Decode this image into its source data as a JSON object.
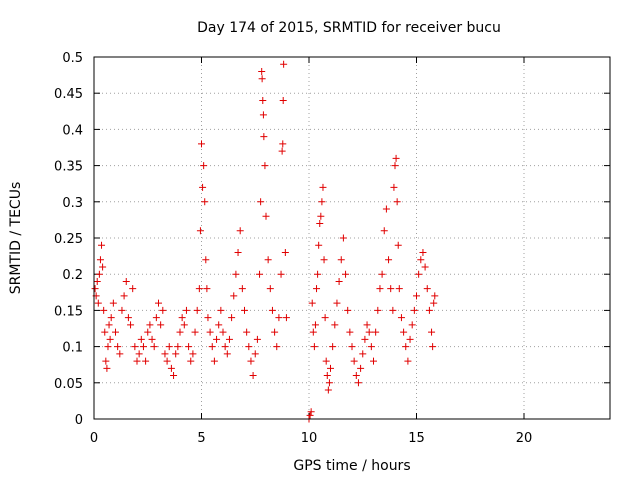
{
  "chart_data": {
    "type": "scatter",
    "title": "Day 174 of 2015, SRMTID for receiver bucu",
    "xlabel": "GPS time / hours",
    "ylabel": "SRMTID / TECUs",
    "xlim": [
      0,
      24
    ],
    "ylim": [
      0,
      0.5
    ],
    "x_ticks": [
      0,
      5,
      10,
      15,
      20
    ],
    "x_tick_labels": [
      "0",
      "5",
      "10",
      "15",
      "20"
    ],
    "y_ticks": [
      0,
      0.05,
      0.1,
      0.15,
      0.2,
      0.25,
      0.3,
      0.35,
      0.4,
      0.45,
      0.5
    ],
    "y_tick_labels": [
      "0",
      "0.05",
      "0.1",
      "0.15",
      "0.2",
      "0.25",
      "0.3",
      "0.35",
      "0.4",
      "0.45",
      "0.5"
    ],
    "grid": true,
    "marker": "+",
    "series": [
      {
        "name": "SRMTID",
        "color": "#e00000",
        "points": [
          [
            0.05,
            0.18
          ],
          [
            0.1,
            0.17
          ],
          [
            0.15,
            0.19
          ],
          [
            0.2,
            0.16
          ],
          [
            0.25,
            0.2
          ],
          [
            0.3,
            0.22
          ],
          [
            0.35,
            0.24
          ],
          [
            0.4,
            0.21
          ],
          [
            0.45,
            0.15
          ],
          [
            0.5,
            0.12
          ],
          [
            0.55,
            0.08
          ],
          [
            0.6,
            0.07
          ],
          [
            0.65,
            0.1
          ],
          [
            0.7,
            0.13
          ],
          [
            0.75,
            0.11
          ],
          [
            0.8,
            0.14
          ],
          [
            0.9,
            0.16
          ],
          [
            1.0,
            0.12
          ],
          [
            1.1,
            0.1
          ],
          [
            1.2,
            0.09
          ],
          [
            1.3,
            0.15
          ],
          [
            1.4,
            0.17
          ],
          [
            1.5,
            0.19
          ],
          [
            1.6,
            0.14
          ],
          [
            1.7,
            0.13
          ],
          [
            1.8,
            0.18
          ],
          [
            1.9,
            0.1
          ],
          [
            2.0,
            0.08
          ],
          [
            2.1,
            0.09
          ],
          [
            2.2,
            0.11
          ],
          [
            2.3,
            0.1
          ],
          [
            2.4,
            0.08
          ],
          [
            2.5,
            0.12
          ],
          [
            2.6,
            0.13
          ],
          [
            2.7,
            0.11
          ],
          [
            2.8,
            0.1
          ],
          [
            2.9,
            0.14
          ],
          [
            3.0,
            0.16
          ],
          [
            3.1,
            0.13
          ],
          [
            3.2,
            0.15
          ],
          [
            3.3,
            0.09
          ],
          [
            3.4,
            0.08
          ],
          [
            3.5,
            0.1
          ],
          [
            3.6,
            0.07
          ],
          [
            3.7,
            0.06
          ],
          [
            3.8,
            0.09
          ],
          [
            3.9,
            0.1
          ],
          [
            4.0,
            0.12
          ],
          [
            4.1,
            0.14
          ],
          [
            4.2,
            0.13
          ],
          [
            4.3,
            0.15
          ],
          [
            4.4,
            0.1
          ],
          [
            4.5,
            0.08
          ],
          [
            4.6,
            0.09
          ],
          [
            4.7,
            0.12
          ],
          [
            4.8,
            0.15
          ],
          [
            4.9,
            0.18
          ],
          [
            4.95,
            0.26
          ],
          [
            5.0,
            0.38
          ],
          [
            5.05,
            0.32
          ],
          [
            5.1,
            0.35
          ],
          [
            5.15,
            0.3
          ],
          [
            5.2,
            0.22
          ],
          [
            5.25,
            0.18
          ],
          [
            5.3,
            0.14
          ],
          [
            5.4,
            0.12
          ],
          [
            5.5,
            0.1
          ],
          [
            5.6,
            0.08
          ],
          [
            5.7,
            0.11
          ],
          [
            5.8,
            0.13
          ],
          [
            5.9,
            0.15
          ],
          [
            6.0,
            0.12
          ],
          [
            6.1,
            0.1
          ],
          [
            6.2,
            0.09
          ],
          [
            6.3,
            0.11
          ],
          [
            6.4,
            0.14
          ],
          [
            6.5,
            0.17
          ],
          [
            6.6,
            0.2
          ],
          [
            6.7,
            0.23
          ],
          [
            6.8,
            0.26
          ],
          [
            6.9,
            0.18
          ],
          [
            7.0,
            0.15
          ],
          [
            7.1,
            0.12
          ],
          [
            7.2,
            0.1
          ],
          [
            7.3,
            0.08
          ],
          [
            7.4,
            0.06
          ],
          [
            7.5,
            0.09
          ],
          [
            7.6,
            0.11
          ],
          [
            7.7,
            0.2
          ],
          [
            7.75,
            0.3
          ],
          [
            7.8,
            0.48
          ],
          [
            7.82,
            0.47
          ],
          [
            7.85,
            0.44
          ],
          [
            7.88,
            0.42
          ],
          [
            7.9,
            0.39
          ],
          [
            7.95,
            0.35
          ],
          [
            8.0,
            0.28
          ],
          [
            8.1,
            0.22
          ],
          [
            8.2,
            0.18
          ],
          [
            8.3,
            0.15
          ],
          [
            8.4,
            0.12
          ],
          [
            8.5,
            0.1
          ],
          [
            8.6,
            0.14
          ],
          [
            8.7,
            0.2
          ],
          [
            8.75,
            0.37
          ],
          [
            8.78,
            0.38
          ],
          [
            8.8,
            0.44
          ],
          [
            8.82,
            0.49
          ],
          [
            8.9,
            0.23
          ],
          [
            8.95,
            0.14
          ],
          [
            10.0,
            0.0
          ],
          [
            10.05,
            0.005
          ],
          [
            10.1,
            0.01
          ],
          [
            10.15,
            0.16
          ],
          [
            10.2,
            0.12
          ],
          [
            10.25,
            0.1
          ],
          [
            10.3,
            0.13
          ],
          [
            10.35,
            0.18
          ],
          [
            10.4,
            0.2
          ],
          [
            10.45,
            0.24
          ],
          [
            10.5,
            0.27
          ],
          [
            10.55,
            0.28
          ],
          [
            10.6,
            0.3
          ],
          [
            10.65,
            0.32
          ],
          [
            10.7,
            0.22
          ],
          [
            10.75,
            0.14
          ],
          [
            10.8,
            0.08
          ],
          [
            10.85,
            0.06
          ],
          [
            10.9,
            0.04
          ],
          [
            10.95,
            0.05
          ],
          [
            11.0,
            0.07
          ],
          [
            11.1,
            0.1
          ],
          [
            11.2,
            0.13
          ],
          [
            11.3,
            0.16
          ],
          [
            11.4,
            0.19
          ],
          [
            11.5,
            0.22
          ],
          [
            11.6,
            0.25
          ],
          [
            11.7,
            0.2
          ],
          [
            11.8,
            0.15
          ],
          [
            11.9,
            0.12
          ],
          [
            12.0,
            0.1
          ],
          [
            12.1,
            0.08
          ],
          [
            12.2,
            0.06
          ],
          [
            12.3,
            0.05
          ],
          [
            12.4,
            0.07
          ],
          [
            12.5,
            0.09
          ],
          [
            12.6,
            0.11
          ],
          [
            12.7,
            0.13
          ],
          [
            12.8,
            0.12
          ],
          [
            12.9,
            0.1
          ],
          [
            13.0,
            0.08
          ],
          [
            13.1,
            0.12
          ],
          [
            13.2,
            0.15
          ],
          [
            13.3,
            0.18
          ],
          [
            13.4,
            0.2
          ],
          [
            13.5,
            0.26
          ],
          [
            13.6,
            0.29
          ],
          [
            13.7,
            0.22
          ],
          [
            13.8,
            0.18
          ],
          [
            13.9,
            0.15
          ],
          [
            13.95,
            0.32
          ],
          [
            14.0,
            0.35
          ],
          [
            14.05,
            0.36
          ],
          [
            14.1,
            0.3
          ],
          [
            14.15,
            0.24
          ],
          [
            14.2,
            0.18
          ],
          [
            14.3,
            0.14
          ],
          [
            14.4,
            0.12
          ],
          [
            14.5,
            0.1
          ],
          [
            14.6,
            0.08
          ],
          [
            14.7,
            0.11
          ],
          [
            14.8,
            0.13
          ],
          [
            14.9,
            0.15
          ],
          [
            15.0,
            0.17
          ],
          [
            15.1,
            0.2
          ],
          [
            15.2,
            0.22
          ],
          [
            15.3,
            0.23
          ],
          [
            15.4,
            0.21
          ],
          [
            15.5,
            0.18
          ],
          [
            15.6,
            0.15
          ],
          [
            15.7,
            0.12
          ],
          [
            15.75,
            0.1
          ],
          [
            15.8,
            0.16
          ],
          [
            15.85,
            0.17
          ]
        ]
      }
    ]
  }
}
